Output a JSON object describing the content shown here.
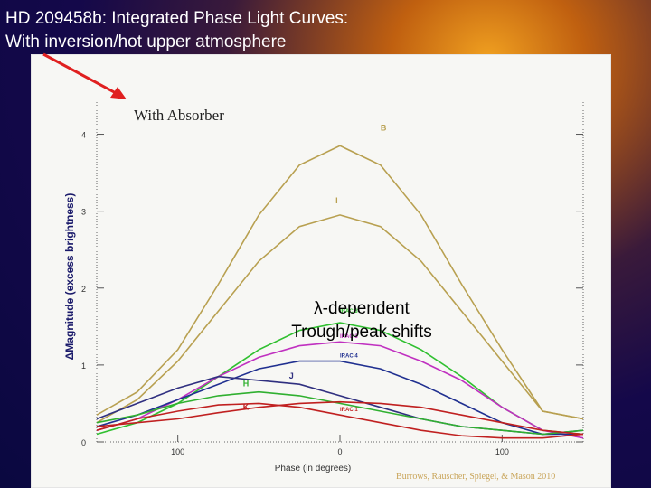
{
  "slide": {
    "title_line1": "HD 209458b: Integrated Phase Light Curves:",
    "title_line2": "With inversion/hot upper atmosphere",
    "credit": "Burrows, Rauscher, Spiegel, & Mason 2010"
  },
  "chart_data": {
    "type": "line",
    "panel_title": "With Absorber",
    "xlabel": "Phase (in degrees)",
    "ylabel": "ΔMagnitude (excess brightness)",
    "xlim": [
      -150,
      150
    ],
    "ylim": [
      0,
      4.3
    ],
    "x_ticks": [
      {
        "value": -100,
        "label": "100"
      },
      {
        "value": 0,
        "label": "0"
      },
      {
        "value": 100,
        "label": "100"
      }
    ],
    "y_ticks": [
      {
        "value": 0,
        "label": "0"
      },
      {
        "value": 1,
        "label": "1"
      },
      {
        "value": 2,
        "label": "2"
      },
      {
        "value": 3,
        "label": "3"
      },
      {
        "value": 4,
        "label": "4"
      }
    ],
    "annotation": {
      "line1": "λ-dependent",
      "line2": "Trough/peak shifts"
    },
    "series": [
      {
        "name": "B",
        "color": "#b8a050",
        "x": [
          -150,
          -125,
          -100,
          -75,
          -50,
          -25,
          0,
          25,
          50,
          75,
          100,
          125,
          150
        ],
        "y": [
          0.35,
          0.65,
          1.2,
          2.05,
          2.95,
          3.6,
          3.85,
          3.6,
          2.95,
          2.05,
          1.2,
          0.4,
          0.3
        ]
      },
      {
        "name": "I",
        "color": "#b8a050",
        "x": [
          -150,
          -125,
          -100,
          -75,
          -50,
          -25,
          0,
          25,
          50,
          75,
          100,
          125,
          150
        ],
        "y": [
          0.25,
          0.55,
          1.05,
          1.7,
          2.35,
          2.8,
          2.95,
          2.8,
          2.35,
          1.7,
          1.05,
          0.4,
          0.3
        ]
      },
      {
        "name": "IRAC 3",
        "color": "#30c030",
        "x": [
          -150,
          -125,
          -100,
          -75,
          -50,
          -25,
          0,
          25,
          50,
          75,
          100,
          125,
          150
        ],
        "y": [
          0.1,
          0.25,
          0.5,
          0.85,
          1.2,
          1.45,
          1.55,
          1.45,
          1.2,
          0.85,
          0.45,
          0.15,
          0.1
        ]
      },
      {
        "name": "IRAC 3",
        "color": "#c030c0",
        "x": [
          -150,
          -125,
          -100,
          -75,
          -50,
          -25,
          0,
          25,
          50,
          75,
          100,
          125,
          150
        ],
        "y": [
          0.15,
          0.3,
          0.55,
          0.85,
          1.1,
          1.25,
          1.3,
          1.25,
          1.05,
          0.8,
          0.45,
          0.15,
          0.05
        ]
      },
      {
        "name": "IRAC 4",
        "color": "#203090",
        "x": [
          -150,
          -125,
          -100,
          -75,
          -50,
          -25,
          0,
          25,
          50,
          75,
          100,
          125,
          150
        ],
        "y": [
          0.2,
          0.35,
          0.55,
          0.75,
          0.95,
          1.05,
          1.05,
          0.95,
          0.75,
          0.5,
          0.25,
          0.1,
          0.1
        ]
      },
      {
        "name": "J",
        "color": "#303080",
        "x": [
          -150,
          -125,
          -100,
          -75,
          -50,
          -25,
          0,
          25,
          50,
          75,
          100,
          125,
          150
        ],
        "y": [
          0.3,
          0.5,
          0.7,
          0.85,
          0.8,
          0.75,
          0.6,
          0.45,
          0.3,
          0.2,
          0.15,
          0.1,
          0.15
        ]
      },
      {
        "name": "H",
        "color": "#30b030",
        "x": [
          -150,
          -125,
          -100,
          -75,
          -50,
          -25,
          0,
          25,
          50,
          75,
          100,
          125,
          150
        ],
        "y": [
          0.25,
          0.35,
          0.5,
          0.6,
          0.65,
          0.6,
          0.5,
          0.4,
          0.3,
          0.2,
          0.15,
          0.1,
          0.15
        ]
      },
      {
        "name": "K",
        "color": "#c02020",
        "x": [
          -150,
          -125,
          -100,
          -75,
          -50,
          -25,
          0,
          25,
          50,
          75,
          100,
          125,
          150
        ],
        "y": [
          0.15,
          0.3,
          0.4,
          0.48,
          0.5,
          0.45,
          0.35,
          0.25,
          0.15,
          0.08,
          0.05,
          0.05,
          0.1
        ]
      },
      {
        "name": "IRAC 1",
        "color": "#c02020",
        "x": [
          -150,
          -125,
          -100,
          -75,
          -50,
          -25,
          0,
          25,
          50,
          75,
          100,
          125,
          150
        ],
        "y": [
          0.2,
          0.25,
          0.3,
          0.38,
          0.45,
          0.5,
          0.52,
          0.5,
          0.45,
          0.35,
          0.25,
          0.15,
          0.1
        ]
      }
    ]
  }
}
